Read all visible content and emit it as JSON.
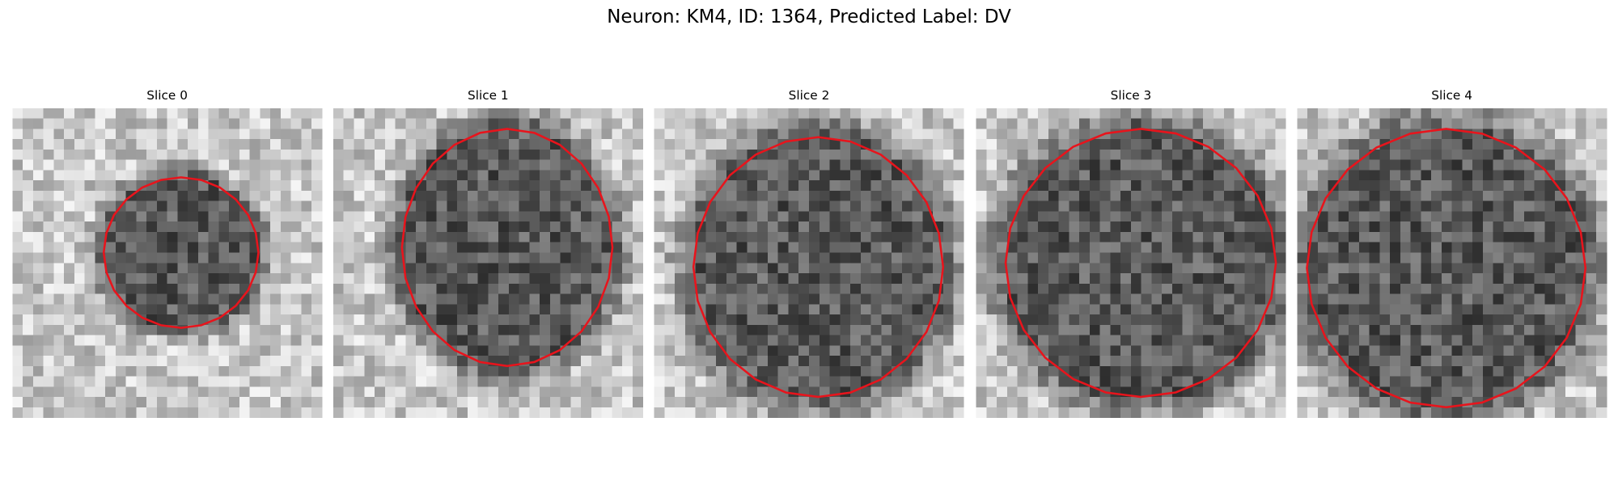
{
  "title": "Neuron: KM4, ID: 1364, Predicted Label: DV",
  "panels": [
    {
      "title": "Slice 0"
    },
    {
      "title": "Slice 1"
    },
    {
      "title": "Slice 2"
    },
    {
      "title": "Slice 3"
    },
    {
      "title": "Slice 4"
    }
  ]
}
